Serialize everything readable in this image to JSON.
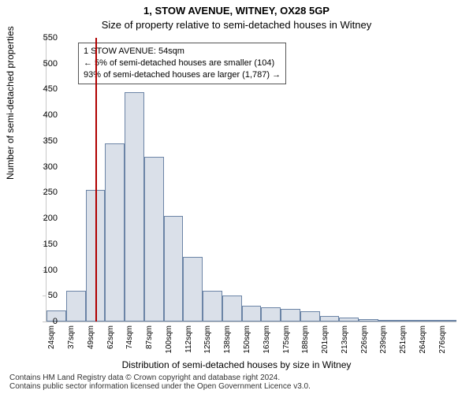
{
  "titles": {
    "line1": "1, STOW AVENUE, WITNEY, OX28 5GP",
    "line2": "Size of property relative to semi-detached houses in Witney"
  },
  "ylabel": "Number of semi-detached properties",
  "xlabel": "Distribution of semi-detached houses by size in Witney",
  "footer": {
    "l1": "Contains HM Land Registry data © Crown copyright and database right 2024.",
    "l2": "Contains public sector information licensed under the Open Government Licence v3.0."
  },
  "chart": {
    "type": "histogram",
    "ylim": [
      0,
      550
    ],
    "ytick_step": 50,
    "bar_color": "rgba(107,132,166,0.25)",
    "bar_border": "#6b84a6",
    "axis_color": "#c8c8c8",
    "marker_line_color": "#b00000",
    "marker_sqm": 54,
    "xticks": [
      "24sqm",
      "37sqm",
      "49sqm",
      "62sqm",
      "74sqm",
      "87sqm",
      "100sqm",
      "112sqm",
      "125sqm",
      "138sqm",
      "150sqm",
      "163sqm",
      "175sqm",
      "188sqm",
      "201sqm",
      "213sqm",
      "226sqm",
      "239sqm",
      "251sqm",
      "264sqm",
      "276sqm"
    ],
    "values": [
      22,
      60,
      255,
      345,
      445,
      320,
      205,
      125,
      60,
      50,
      30,
      28,
      25,
      20,
      10,
      7,
      5,
      3,
      2,
      2,
      2
    ]
  },
  "annotation": {
    "l1": "1 STOW AVENUE: 54sqm",
    "l2": "← 5% of semi-detached houses are smaller (104)",
    "l3": "93% of semi-detached houses are larger (1,787) →"
  }
}
